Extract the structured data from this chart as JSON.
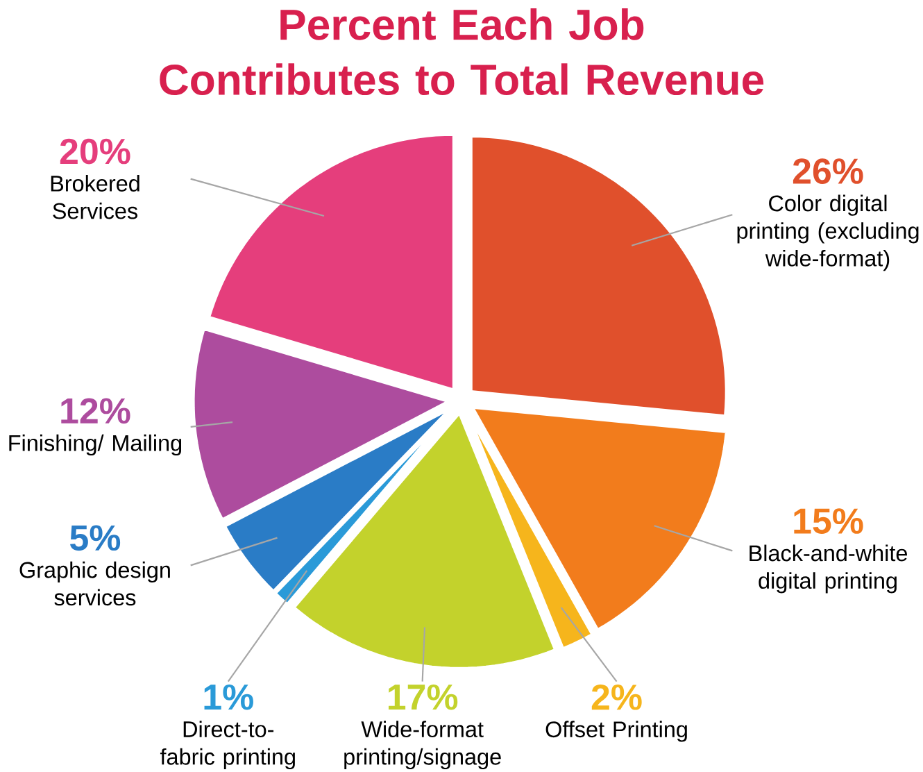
{
  "chart_data": {
    "type": "pie",
    "title": "Percent Each Job Contributes to Total Revenue",
    "categories": [
      "Color digital printing (excluding wide-format)",
      "Black-and-white digital printing",
      "Offset Printing",
      "Wide-format printing/signage",
      "Direct-to-fabric printing",
      "Graphic design services",
      "Finishing/ Mailing",
      "Brokered Services"
    ],
    "values": [
      26,
      15,
      2,
      17,
      1,
      5,
      12,
      20
    ],
    "value_labels": [
      "26%",
      "15%",
      "2%",
      "17%",
      "1%",
      "5%",
      "12%",
      "20%"
    ],
    "colors": [
      "#e0502c",
      "#f27c1c",
      "#f6b51c",
      "#c3d22c",
      "#2a9ad8",
      "#2a7cc6",
      "#ad4c9e",
      "#e53e7c"
    ]
  }
}
